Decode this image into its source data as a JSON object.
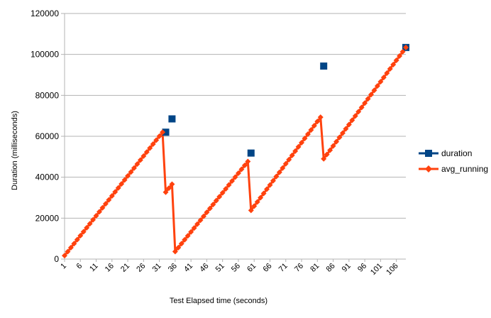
{
  "chart_data": {
    "type": "line",
    "title": "",
    "xlabel": "Test Elapsed time (seconds)",
    "ylabel": "Duration (milliseconds)",
    "ylim": [
      0,
      120000
    ],
    "y_ticks": [
      0,
      20000,
      40000,
      60000,
      80000,
      100000,
      120000
    ],
    "y_tick_labels": [
      "0",
      "20000",
      "40000",
      "60000",
      "80000",
      "100000",
      "120000"
    ],
    "xlim": [
      1,
      109
    ],
    "x_ticks": [
      1,
      6,
      11,
      16,
      21,
      26,
      31,
      36,
      41,
      46,
      51,
      56,
      61,
      66,
      71,
      76,
      81,
      86,
      91,
      96,
      101,
      106
    ],
    "grid": "horizontal",
    "legend_position": "right",
    "series": [
      {
        "name": "duration",
        "color": "#004586",
        "marker": "square",
        "points": [
          [
            33,
            62000
          ],
          [
            35,
            68500
          ],
          [
            60,
            51800
          ],
          [
            83,
            94300
          ],
          [
            109,
            103400
          ]
        ]
      },
      {
        "name": "avg_running",
        "color": "#ff420e",
        "marker": "diamond",
        "points": [
          [
            1,
            1700
          ],
          [
            32,
            62000
          ],
          [
            33,
            32700
          ],
          [
            35,
            36600
          ],
          [
            36,
            3700
          ],
          [
            59,
            47700
          ],
          [
            60,
            23800
          ],
          [
            82,
            69300
          ],
          [
            83,
            49000
          ],
          [
            109,
            103400
          ]
        ]
      }
    ]
  }
}
